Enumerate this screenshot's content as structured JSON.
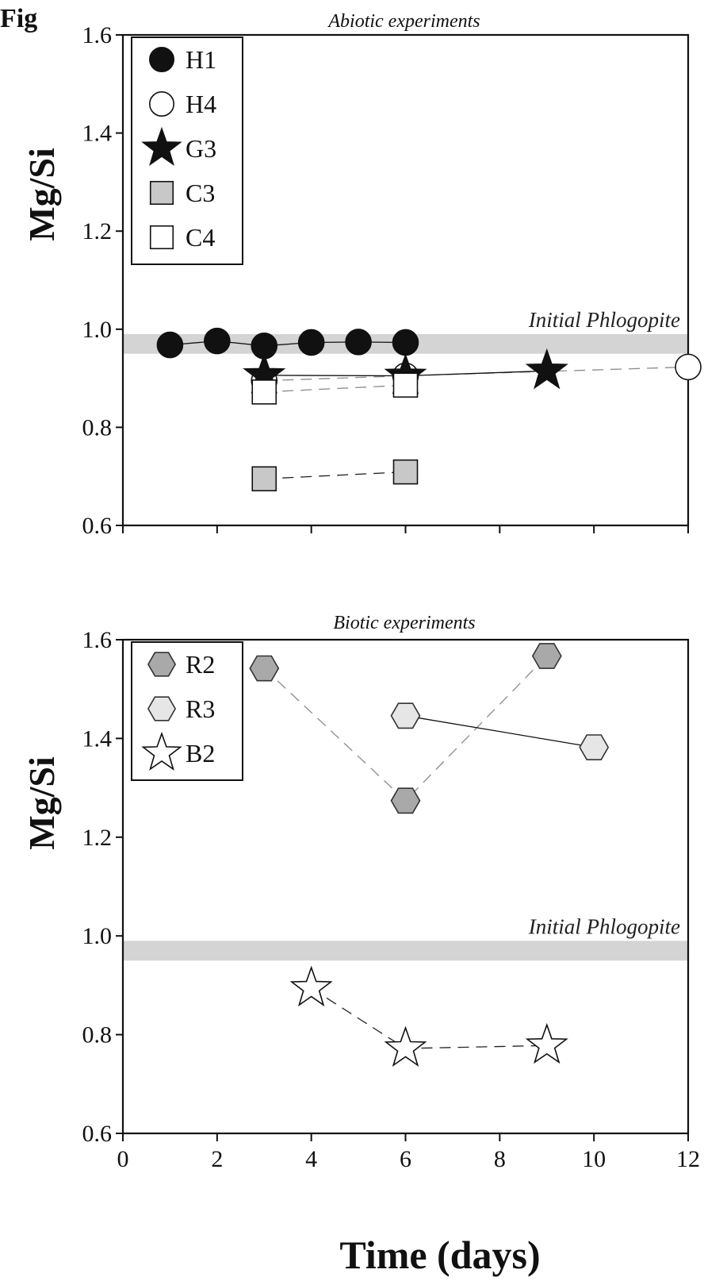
{
  "figure_label": "Fig",
  "chart_data": [
    {
      "type": "line",
      "title": "Abiotic experiments",
      "xlabel": "",
      "ylabel": "Mg/Si",
      "xlim": [
        0,
        12
      ],
      "ylim": [
        0.6,
        1.6
      ],
      "xticks": [
        0,
        2,
        4,
        6,
        8,
        10,
        12
      ],
      "yticks": [
        0.6,
        0.8,
        1.0,
        1.2,
        1.4,
        1.6
      ],
      "ytick_labels": [
        "0.6",
        "0.8",
        "1.0",
        "1.2",
        "1.4",
        "1.6"
      ],
      "xtick_labels_shown": false,
      "band": {
        "label": "Initial Phlogopite",
        "y_range": [
          0.95,
          0.99
        ],
        "color": "#d4d4d4"
      },
      "legend_position": "top-left",
      "series": [
        {
          "name": "H1",
          "marker": "circle",
          "fill": "#111111",
          "line": "solid",
          "x": [
            1,
            2,
            3,
            4,
            5,
            6
          ],
          "y": [
            0.968,
            0.976,
            0.966,
            0.973,
            0.974,
            0.973
          ]
        },
        {
          "name": "H4",
          "marker": "circle",
          "fill": "#ffffff",
          "line": "dashed-light",
          "x": [
            3,
            6,
            12
          ],
          "y": [
            0.895,
            0.905,
            0.923
          ]
        },
        {
          "name": "G3",
          "marker": "star",
          "fill": "#111111",
          "line": "solid",
          "x": [
            3,
            6,
            9
          ],
          "y": [
            0.906,
            0.905,
            0.915
          ]
        },
        {
          "name": "C3",
          "marker": "square",
          "fill": "#c8c8c8",
          "line": "dashed",
          "x": [
            3,
            6
          ],
          "y": [
            0.695,
            0.709
          ]
        },
        {
          "name": "C4",
          "marker": "square",
          "fill": "#ffffff",
          "line": "dashed-light",
          "x": [
            3,
            6
          ],
          "y": [
            0.872,
            0.886
          ]
        }
      ]
    },
    {
      "type": "line",
      "title": "Biotic experiments",
      "xlabel": "Time (days)",
      "ylabel": "Mg/Si",
      "xlim": [
        0,
        12
      ],
      "ylim": [
        0.6,
        1.6
      ],
      "xticks": [
        0,
        2,
        4,
        6,
        8,
        10,
        12
      ],
      "xtick_labels": [
        "0",
        "2",
        "4",
        "6",
        "8",
        "10",
        "12"
      ],
      "yticks": [
        0.6,
        0.8,
        1.0,
        1.2,
        1.4,
        1.6
      ],
      "ytick_labels": [
        "0.6",
        "0.8",
        "1.0",
        "1.2",
        "1.4",
        "1.6"
      ],
      "band": {
        "label": "Initial Phlogopite",
        "y_range": [
          0.95,
          0.99
        ],
        "color": "#d4d4d4"
      },
      "legend_position": "top-left",
      "series": [
        {
          "name": "R2",
          "marker": "hexagon",
          "fill": "#a9a9a9",
          "line": "dashed-light",
          "x": [
            3,
            6,
            9
          ],
          "y": [
            1.542,
            1.274,
            1.567
          ]
        },
        {
          "name": "R3",
          "marker": "hexagon",
          "fill": "#e6e6e6",
          "line": "solid",
          "x": [
            6,
            10
          ],
          "y": [
            1.446,
            1.382
          ]
        },
        {
          "name": "B2",
          "marker": "star",
          "fill": "#ffffff",
          "line": "dashed",
          "x": [
            4,
            6,
            9
          ],
          "y": [
            0.894,
            0.772,
            0.778
          ]
        }
      ]
    }
  ]
}
